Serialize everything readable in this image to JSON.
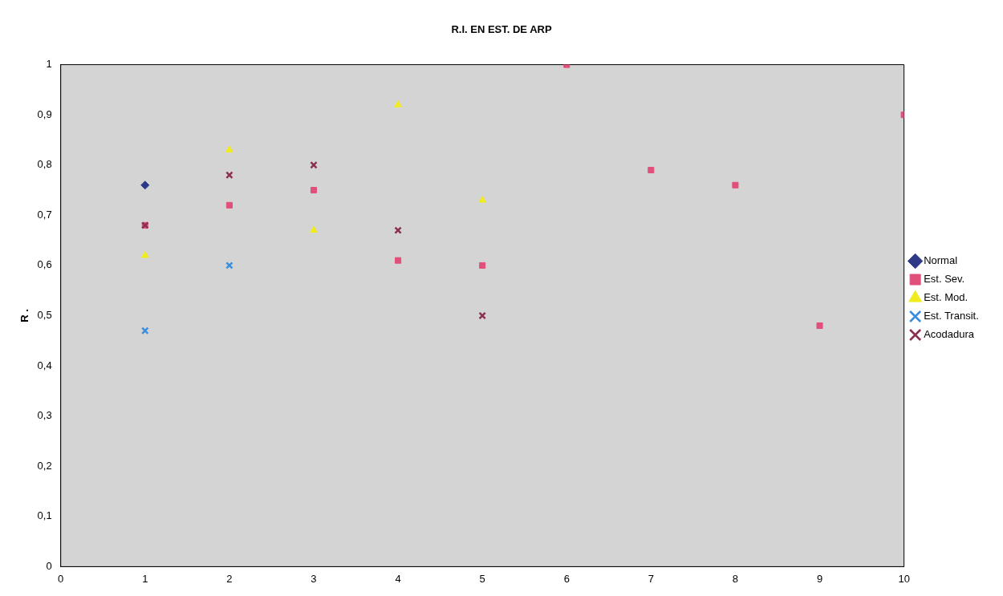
{
  "chart_data": {
    "type": "scatter",
    "title": "R.I. EN EST. DE ARP",
    "ylabel": "R .",
    "xlim": [
      0,
      10
    ],
    "xticks": [
      0,
      1,
      2,
      3,
      4,
      5,
      6,
      7,
      8,
      9,
      10
    ],
    "ylim": [
      0,
      1
    ],
    "yticks": [
      0,
      {
        "value": 0.1,
        "label": "0,1"
      },
      {
        "value": 0.2,
        "label": "0,2"
      },
      {
        "value": 0.3,
        "label": "0,3"
      },
      {
        "value": 0.4,
        "label": "0,4"
      },
      {
        "value": 0.5,
        "label": "0,5"
      },
      {
        "value": 0.6,
        "label": "0,6"
      },
      {
        "value": 0.7,
        "label": "0,7"
      },
      {
        "value": 0.8,
        "label": "0,8"
      },
      {
        "value": 0.9,
        "label": "0,9"
      },
      1
    ],
    "grid": false,
    "legend": "right",
    "series": [
      {
        "name": "Normal",
        "color": "#2e3a87",
        "marker": "diamond",
        "x": [
          1
        ],
        "values": [
          0.76
        ]
      },
      {
        "name": "Est. Sev.",
        "color": "#e0507a",
        "marker": "square",
        "x": [
          1,
          2,
          3,
          4,
          5,
          6,
          7,
          8,
          9,
          10
        ],
        "values": [
          0.68,
          0.72,
          0.75,
          0.61,
          0.6,
          1.0,
          0.79,
          0.76,
          0.48,
          0.9
        ]
      },
      {
        "name": "Est. Mod.",
        "color": "#f0ec20",
        "marker": "triangle",
        "x": [
          1,
          2,
          3,
          4,
          5
        ],
        "values": [
          0.62,
          0.83,
          0.67,
          0.92,
          0.73
        ]
      },
      {
        "name": "Est. Transit.",
        "color": "#3a8ee0",
        "marker": "cross",
        "x": [
          1,
          2
        ],
        "values": [
          0.47,
          0.6
        ]
      },
      {
        "name": "Acodadura",
        "color": "#8b3050",
        "marker": "cross",
        "x": [
          1,
          2,
          3,
          4,
          5
        ],
        "values": [
          0.68,
          0.78,
          0.8,
          0.67,
          0.5
        ]
      }
    ]
  }
}
